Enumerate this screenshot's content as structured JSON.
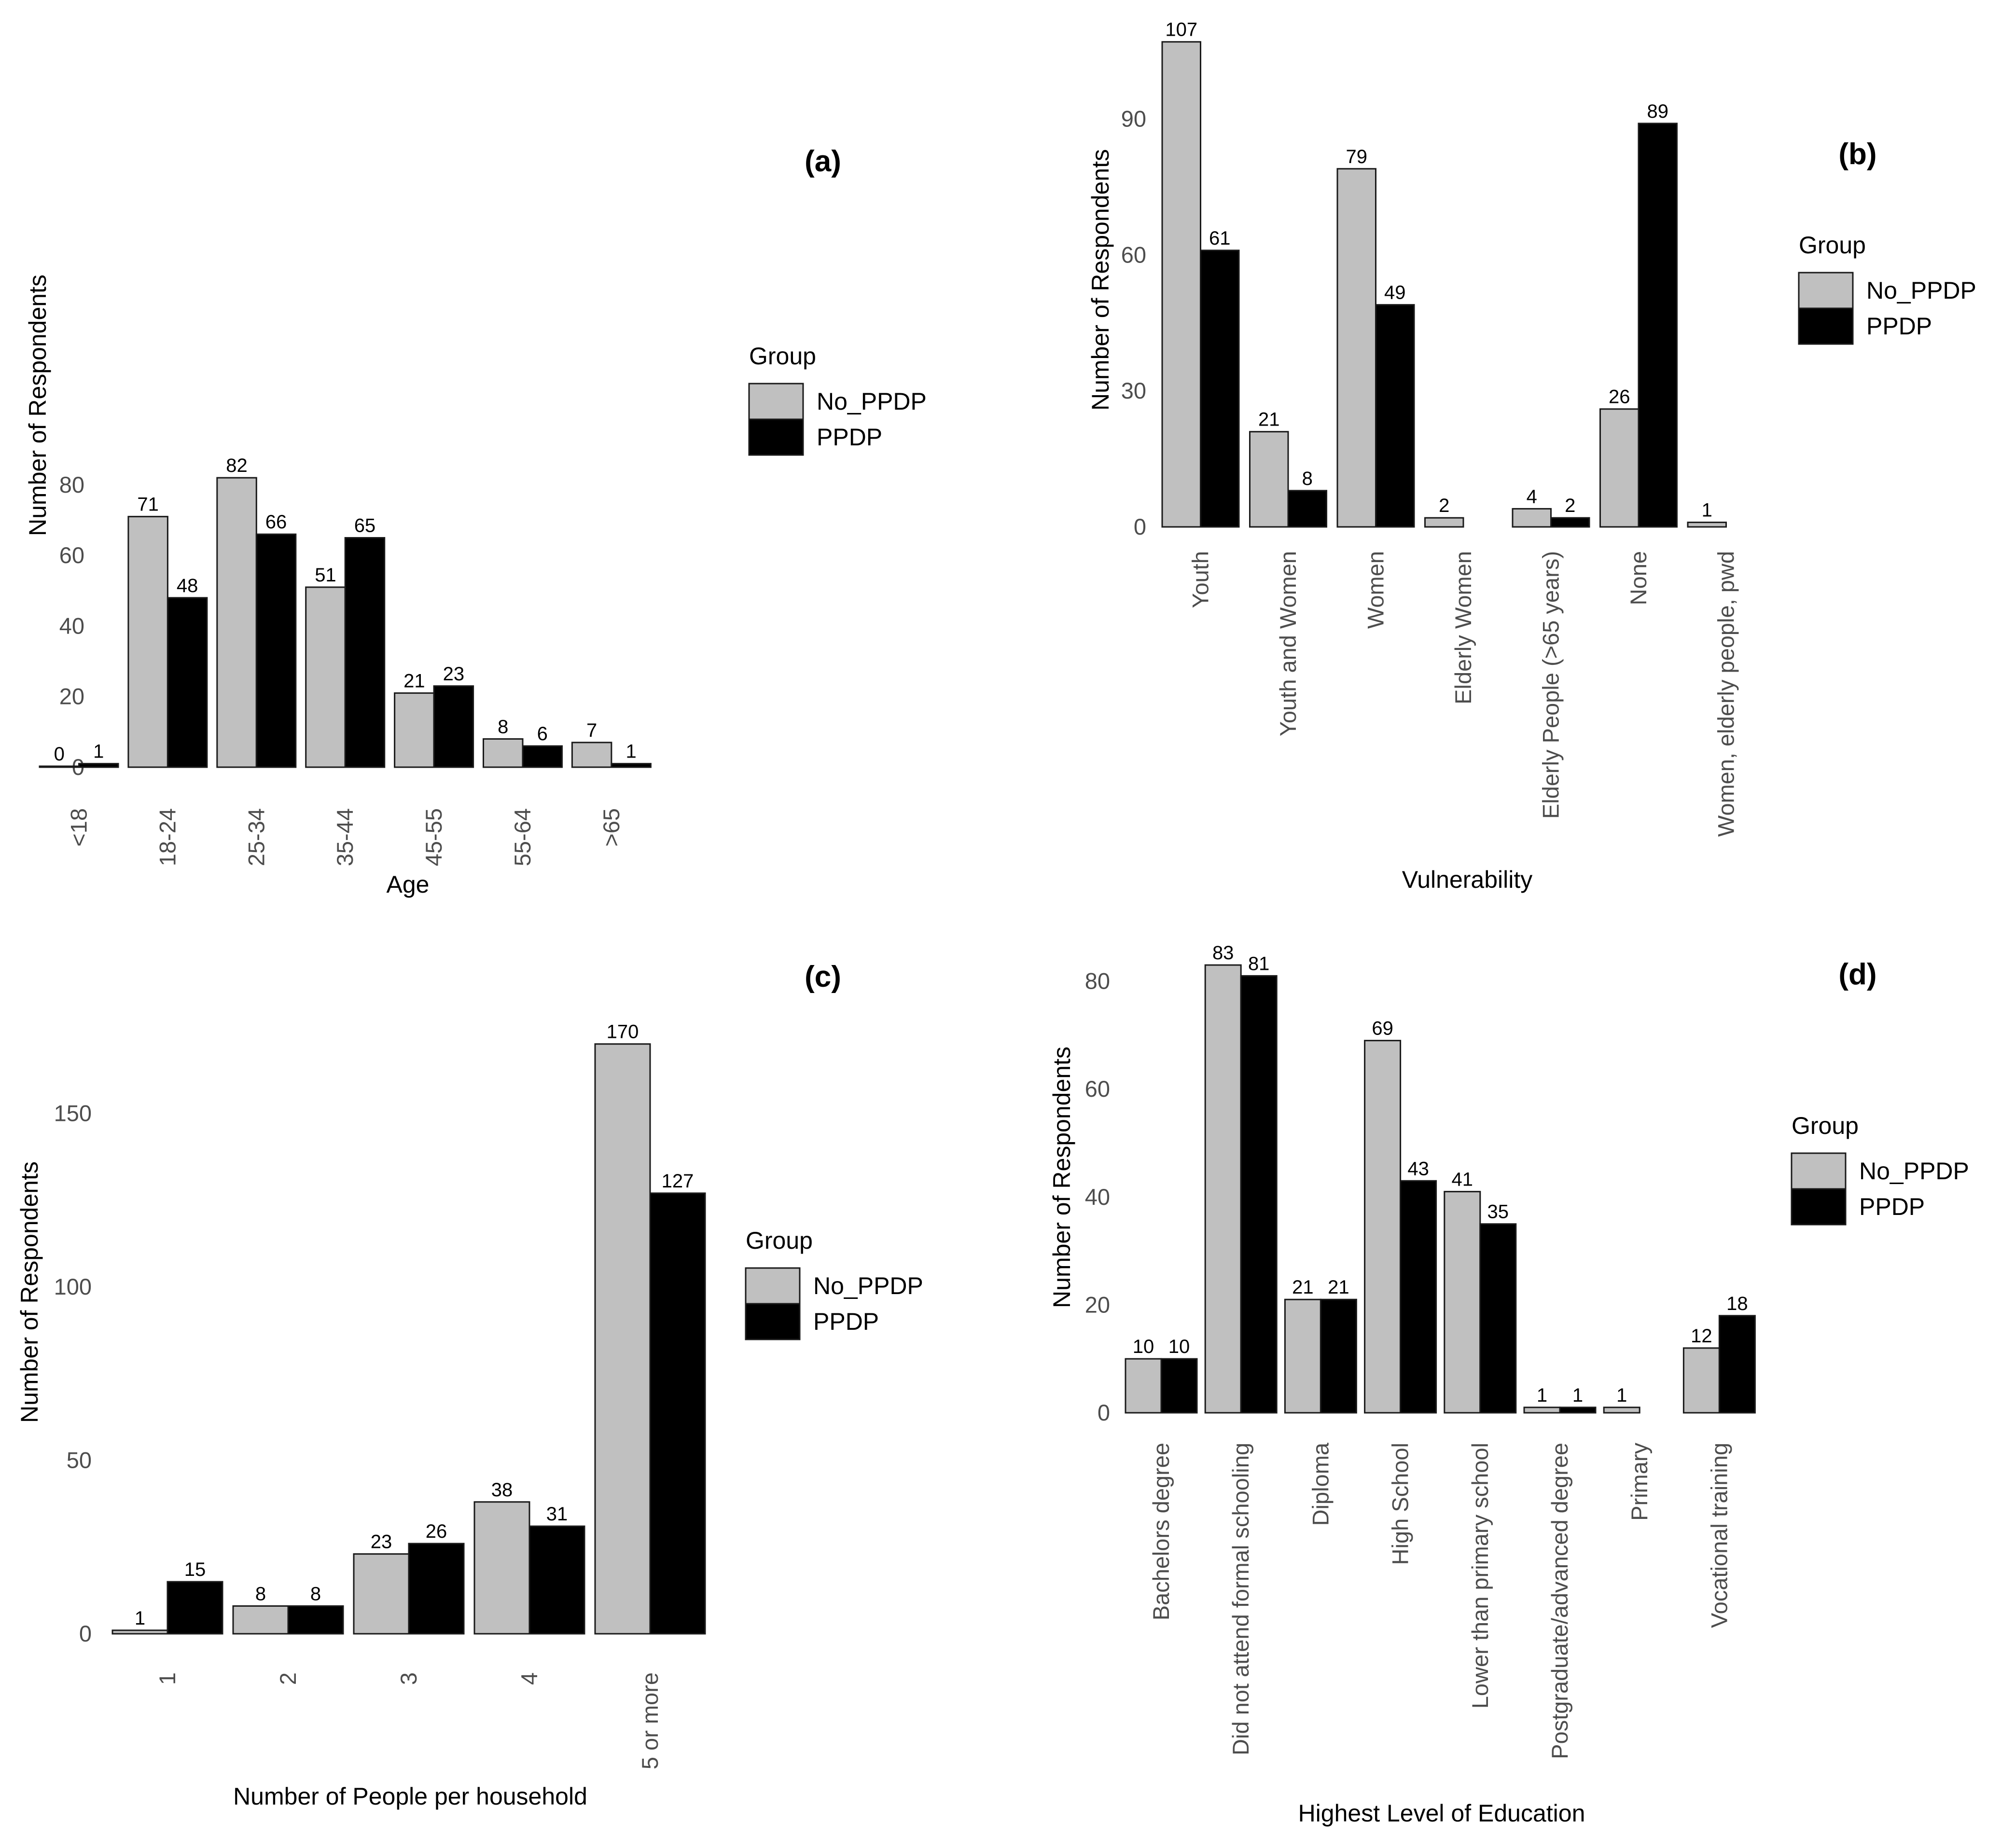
{
  "colors": {
    "No_PPDP": "#c0c0c0",
    "PPDP": "#000000"
  },
  "chart_data": [
    {
      "type": "bar",
      "panel": "(a)",
      "title": "",
      "xlabel": "Age",
      "ylabel": "Number of Respondents",
      "categories": [
        "<18",
        "18-24",
        "25-34",
        "35-44",
        "45-55",
        "55-64",
        ">65"
      ],
      "series": [
        {
          "name": "No_PPDP",
          "values": [
            0,
            71,
            82,
            51,
            21,
            8,
            7
          ]
        },
        {
          "name": "PPDP",
          "values": [
            1,
            48,
            66,
            65,
            23,
            6,
            1
          ]
        }
      ],
      "ylim": [
        0,
        85
      ],
      "yticks": [
        0,
        20,
        40,
        60,
        80
      ],
      "grid": false,
      "legend": {
        "title": "Group",
        "position": "right"
      }
    },
    {
      "type": "bar",
      "panel": "(b)",
      "title": "",
      "xlabel": "Vulnerability",
      "ylabel": "Number of Respondents",
      "categories": [
        "Youth",
        "Youth and Women",
        "Women",
        "Elderly Women",
        "Elderly People (>65 years)",
        "None",
        "Women, elderly people, pwd"
      ],
      "series": [
        {
          "name": "No_PPDP",
          "values": [
            107,
            21,
            79,
            2,
            4,
            26,
            1
          ]
        },
        {
          "name": "PPDP",
          "values": [
            61,
            8,
            49,
            null,
            2,
            89,
            null
          ]
        }
      ],
      "ylim": [
        0,
        110
      ],
      "yticks": [
        0,
        30,
        60,
        90
      ],
      "grid": false,
      "legend": {
        "title": "Group",
        "position": "right"
      }
    },
    {
      "type": "bar",
      "panel": "(c)",
      "title": "",
      "xlabel": "Number of People per household",
      "ylabel": "Number of Respondents",
      "categories": [
        "1",
        "2",
        "3",
        "4",
        "5 or more"
      ],
      "series": [
        {
          "name": "No_PPDP",
          "values": [
            1,
            8,
            23,
            38,
            170
          ]
        },
        {
          "name": "PPDP",
          "values": [
            15,
            8,
            26,
            31,
            127
          ]
        }
      ],
      "ylim": [
        0,
        175
      ],
      "yticks": [
        0,
        50,
        100,
        150
      ],
      "grid": false,
      "legend": {
        "title": "Group",
        "position": "right"
      }
    },
    {
      "type": "bar",
      "panel": "(d)",
      "title": "",
      "xlabel": "Highest Level of Education",
      "ylabel": "Number of Respondents",
      "categories": [
        "Bachelors degree",
        "Did not attend formal schooling",
        "Diploma",
        "High School",
        "Lower than primary school",
        "Postgraduate/advanced degree",
        "Primary",
        "Vocational training"
      ],
      "series": [
        {
          "name": "No_PPDP",
          "values": [
            10,
            83,
            21,
            69,
            41,
            1,
            1,
            12
          ]
        },
        {
          "name": "PPDP",
          "values": [
            10,
            81,
            21,
            43,
            35,
            1,
            null,
            18
          ]
        }
      ],
      "ylim": [
        0,
        85
      ],
      "yticks": [
        0,
        20,
        40,
        60,
        80
      ],
      "grid": false,
      "legend": {
        "title": "Group",
        "position": "right"
      }
    }
  ]
}
